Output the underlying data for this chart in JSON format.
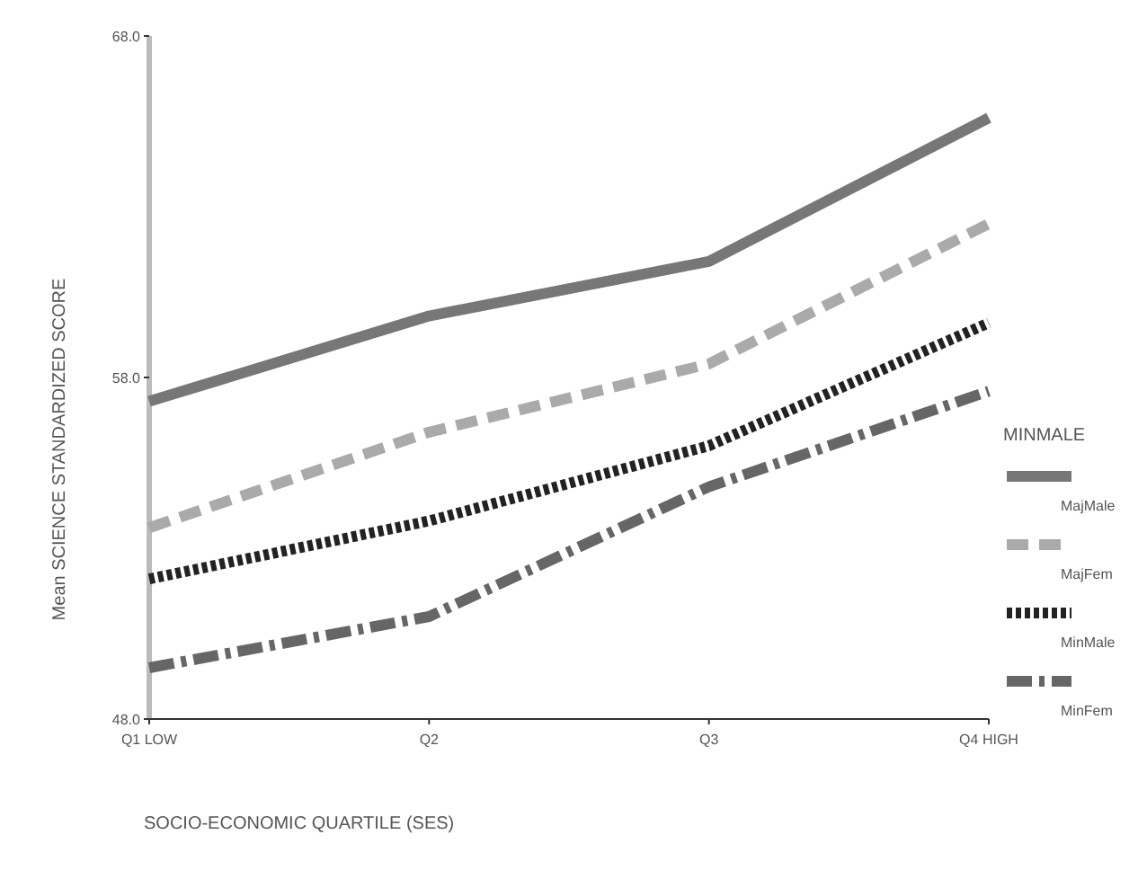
{
  "chart_data": {
    "type": "line",
    "xlabel": "SOCIO-ECONOMIC QUARTILE (SES)",
    "ylabel": "Mean SCIENCE STANDARDIZED SCORE",
    "legend_title": "MINMALE",
    "legend": "right",
    "grid": false,
    "categories": [
      "Q1 LOW",
      "Q2",
      "Q3",
      "Q4 HIGH"
    ],
    "ylim": [
      48,
      68
    ],
    "yticks": [
      {
        "value": 48,
        "label": "48.0"
      },
      {
        "value": 58,
        "label": "58.0"
      },
      {
        "value": 68,
        "label": "68.0"
      }
    ],
    "series": [
      {
        "name": "MajMale",
        "color": "#777777",
        "line_style": "solid",
        "values": [
          57.3,
          59.8,
          61.4,
          65.6
        ]
      },
      {
        "name": "MajFem",
        "color": "#aaaaaa",
        "line_style": "dashed",
        "values": [
          53.6,
          56.4,
          58.4,
          62.5
        ]
      },
      {
        "name": "MinMale",
        "color": "#222222",
        "line_style": "dotted",
        "values": [
          52.1,
          53.8,
          56.0,
          59.6
        ]
      },
      {
        "name": "MinFem",
        "color": "#666666",
        "line_style": "dashdot",
        "values": [
          49.5,
          51.0,
          54.8,
          57.6
        ]
      }
    ]
  }
}
